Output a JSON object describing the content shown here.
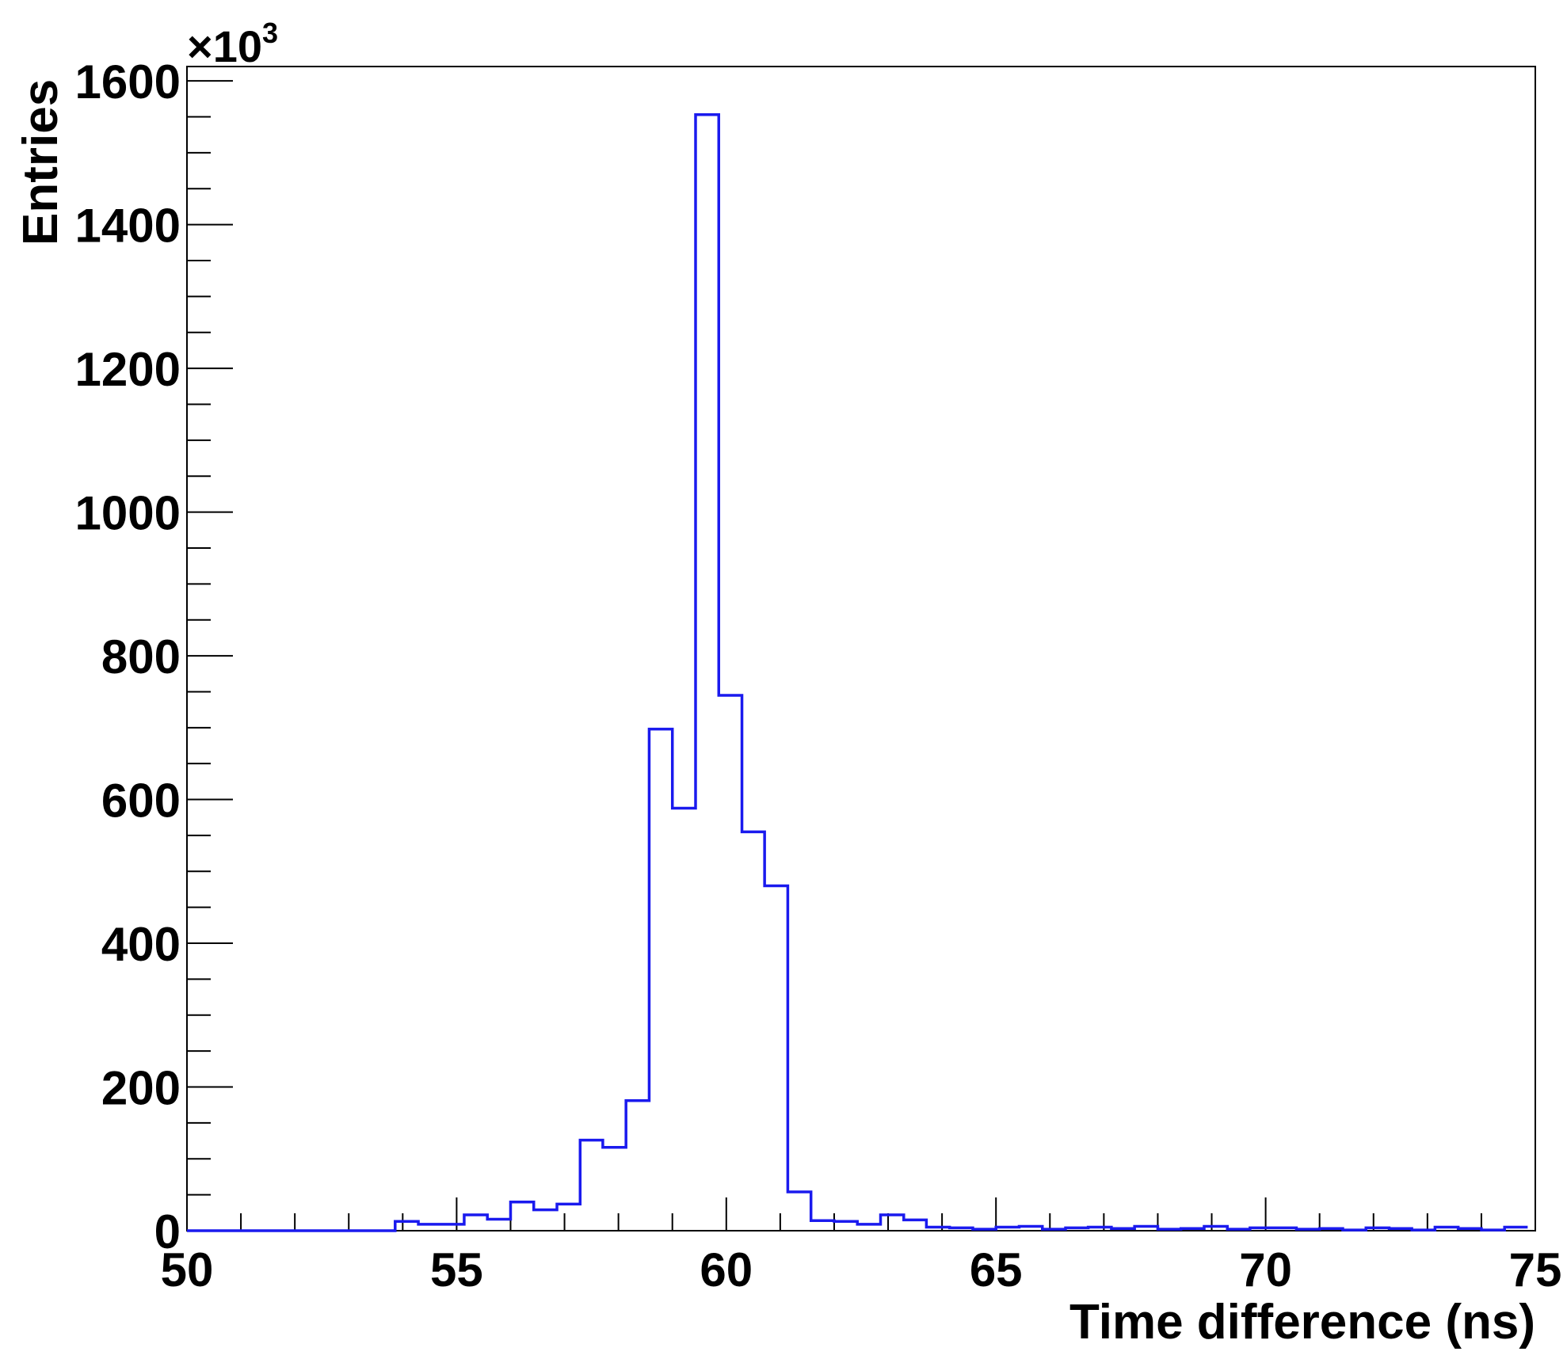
{
  "chart_data": {
    "type": "histogram",
    "title": "",
    "xlabel": "Time difference (ns)",
    "ylabel": "Entries",
    "y_multiplier_prefix": "×10",
    "y_multiplier_exponent": "3",
    "xlim": [
      50,
      75
    ],
    "ylim": [
      0,
      1620
    ],
    "x_major_ticks": [
      50,
      55,
      60,
      65,
      70,
      75
    ],
    "x_tick_labels": [
      "50",
      "55",
      "60",
      "65",
      "70",
      "75"
    ],
    "y_major_ticks": [
      0,
      200,
      400,
      600,
      800,
      1000,
      1200,
      1400,
      1600
    ],
    "y_tick_labels": [
      "0",
      "200",
      "400",
      "600",
      "800",
      "1000",
      "1200",
      "1400",
      "1600"
    ],
    "bin_width": 0.4285,
    "bin_low_edges": [
      50.0,
      50.43,
      50.86,
      51.29,
      51.71,
      52.14,
      52.57,
      53.0,
      53.43,
      53.86,
      54.29,
      54.71,
      55.14,
      55.57,
      56.0,
      56.43,
      56.86,
      57.29,
      57.71,
      58.14,
      58.57,
      59.0,
      59.43,
      59.86,
      60.29,
      60.71,
      61.14,
      61.57,
      62.0,
      62.43,
      62.86,
      63.29,
      63.71,
      64.14,
      64.57,
      65.0,
      65.43,
      65.86,
      66.29,
      66.71,
      67.14,
      67.57,
      68.0,
      68.43,
      68.86,
      69.29,
      69.71,
      70.14,
      70.57,
      71.0,
      71.43,
      71.86,
      72.29,
      72.71,
      73.14,
      73.57,
      74.0,
      74.43
    ],
    "values": [
      0,
      0,
      0,
      0,
      0,
      0,
      0,
      0,
      0,
      13,
      9,
      9,
      22,
      16,
      40,
      29,
      37,
      126,
      116,
      181,
      698,
      588,
      1553,
      745,
      555,
      480,
      54,
      14,
      13,
      9,
      22,
      15,
      5,
      4,
      2,
      5,
      6,
      2,
      4,
      5,
      3,
      6,
      2,
      3,
      6,
      2,
      4,
      4,
      2,
      3,
      1,
      4,
      3,
      1,
      5,
      3,
      1,
      5
    ],
    "series_color": "#1a1aee",
    "grid": false,
    "legend": "none"
  }
}
